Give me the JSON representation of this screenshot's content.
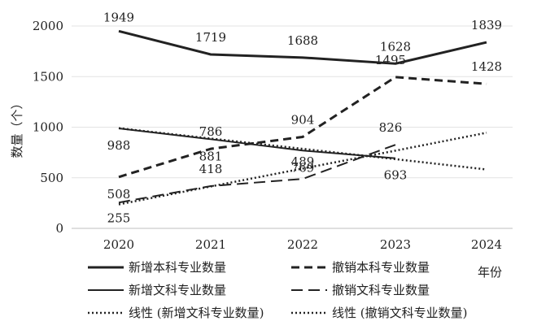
{
  "chart_data": {
    "type": "line",
    "title": "",
    "xlabel": "年份",
    "ylabel": "数量（个）",
    "ylim": [
      0,
      2000
    ],
    "yticks": [
      0,
      500,
      1000,
      1500,
      2000
    ],
    "categories": [
      "2020",
      "2021",
      "2022",
      "2023",
      "2024"
    ],
    "grid": true,
    "legend_position": "bottom",
    "series": [
      {
        "name": "新增本科专业数量",
        "style": "solid-thick",
        "color": "#222222",
        "values": [
          1949,
          1719,
          1688,
          1628,
          1839
        ],
        "labels": [
          "1949",
          "1719",
          "1688",
          "1628",
          "1839"
        ]
      },
      {
        "name": "撤销本科专业数量",
        "style": "dashed",
        "color": "#222222",
        "values": [
          508,
          786,
          904,
          1495,
          1428
        ],
        "labels": [
          "508",
          "786",
          "904",
          "1495",
          "1428"
        ]
      },
      {
        "name": "新增文科专业数量",
        "style": "solid-thin",
        "color": "#222222",
        "values": [
          988,
          881,
          769,
          693,
          null
        ],
        "labels": [
          "988",
          "881",
          "769",
          "693",
          ""
        ]
      },
      {
        "name": "撤销文科专业数量",
        "style": "long-dash",
        "color": "#222222",
        "values": [
          255,
          418,
          489,
          826,
          null
        ],
        "labels": [
          "255",
          "418",
          "489",
          "826",
          ""
        ]
      },
      {
        "name": "线性 (新增文科专业数量)",
        "style": "dotted",
        "color": "#222222",
        "trend_of": "新增文科专业数量",
        "values": [
          990,
          888,
          786,
          684,
          582
        ],
        "labels": []
      },
      {
        "name": "线性 (撤销文科专业数量)",
        "style": "dotted",
        "color": "#222222",
        "trend_of": "撤销文科专业数量",
        "values": [
          237,
          414,
          591,
          768,
          945
        ],
        "labels": []
      }
    ]
  }
}
